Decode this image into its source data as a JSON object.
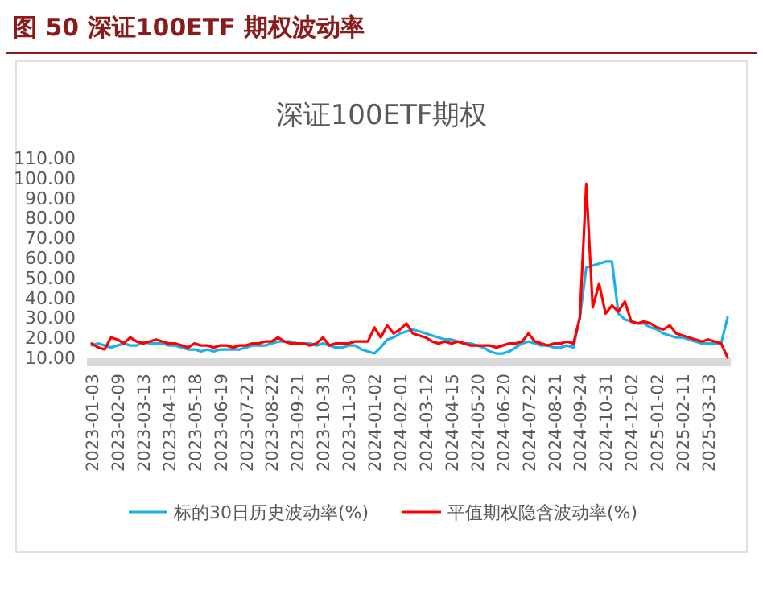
{
  "chart_data": {
    "type": "line",
    "title": "图 50  深证100ETF 期权波动率",
    "subtitle": "深证100ETF期权",
    "categories": [
      "2023-01-03",
      null,
      null,
      null,
      "2023-02-09",
      null,
      null,
      null,
      "2023-03-13",
      null,
      null,
      null,
      "2023-04-13",
      null,
      null,
      null,
      "2023-05-18",
      null,
      null,
      null,
      "2023-06-19",
      null,
      null,
      null,
      "2023-07-21",
      null,
      null,
      null,
      "2023-08-22",
      null,
      null,
      null,
      "2023-09-21",
      null,
      null,
      null,
      "2023-10-31",
      null,
      null,
      null,
      "2023-11-30",
      null,
      null,
      null,
      "2024-01-02",
      null,
      null,
      null,
      "2024-02-01",
      null,
      null,
      null,
      "2024-03-12",
      null,
      null,
      null,
      "2024-04-15",
      null,
      null,
      null,
      "2024-05-20",
      null,
      null,
      null,
      "2024-06-20",
      null,
      null,
      null,
      "2024-07-22",
      null,
      null,
      null,
      "2024-08-21",
      null,
      null,
      null,
      "2024-09-24",
      null,
      null,
      null,
      "2024-10-31",
      null,
      null,
      null,
      "2024-12-02",
      null,
      null,
      null,
      "2025-01-02",
      null,
      null,
      null,
      "2025-02-11",
      null,
      null,
      null,
      "2025-03-13",
      null,
      null,
      null
    ],
    "series": [
      {
        "name": "标的30日历史波动率(%)",
        "color": "#1ab0ec",
        "values": [
          16,
          17,
          16,
          15,
          16,
          17,
          16,
          16,
          18,
          17,
          17,
          17,
          16,
          16,
          15,
          14,
          14,
          13,
          14,
          13,
          14,
          14,
          14,
          14,
          15,
          16,
          16,
          16,
          17,
          18,
          18,
          18,
          17,
          17,
          17,
          16,
          17,
          16,
          15,
          15,
          16,
          16,
          14,
          13,
          12,
          15,
          19,
          20,
          22,
          23,
          24,
          23,
          22,
          21,
          20,
          19,
          19,
          18,
          17,
          17,
          16,
          15,
          13,
          12,
          12,
          13,
          15,
          17,
          18,
          17,
          16,
          16,
          15,
          15,
          16,
          15,
          30,
          55,
          56,
          57,
          58,
          58,
          32,
          29,
          28,
          27,
          27,
          25,
          24,
          22,
          21,
          20,
          20,
          19,
          18,
          17,
          17,
          17,
          17,
          30
        ]
      },
      {
        "name": "平值期权隐含波动率(%)",
        "color": "#ff0000",
        "values": [
          17,
          15,
          14,
          20,
          19,
          17,
          20,
          18,
          17,
          18,
          19,
          18,
          17,
          17,
          16,
          15,
          17,
          16,
          16,
          15,
          16,
          16,
          15,
          16,
          16,
          17,
          17,
          18,
          18,
          20,
          18,
          17,
          17,
          17,
          16,
          17,
          20,
          16,
          17,
          17,
          17,
          18,
          18,
          18,
          25,
          20,
          26,
          22,
          24,
          27,
          22,
          21,
          20,
          18,
          17,
          18,
          17,
          18,
          17,
          16,
          16,
          16,
          16,
          15,
          16,
          17,
          17,
          18,
          22,
          18,
          17,
          16,
          17,
          17,
          18,
          17,
          30,
          97,
          35,
          47,
          32,
          36,
          33,
          38,
          28,
          27,
          28,
          27,
          25,
          24,
          26,
          22,
          21,
          20,
          19,
          18,
          19,
          18,
          17,
          10
        ]
      }
    ],
    "ylim": [
      10,
      110
    ],
    "yticks": [
      {
        "value": 10,
        "label": "10.00"
      },
      {
        "value": 20,
        "label": "20.00"
      },
      {
        "value": 30,
        "label": "30.00"
      },
      {
        "value": 40,
        "label": "40.00"
      },
      {
        "value": 50,
        "label": "50.00"
      },
      {
        "value": 60,
        "label": "60.00"
      },
      {
        "value": 70,
        "label": "70.00"
      },
      {
        "value": 80,
        "label": "80.00"
      },
      {
        "value": 90,
        "label": "90.00"
      },
      {
        "value": 100,
        "label": "100.00"
      },
      {
        "value": 110,
        "label": "110.00"
      }
    ],
    "grid": false,
    "legend": "bottom",
    "marker": "none",
    "line_style": "solid"
  }
}
